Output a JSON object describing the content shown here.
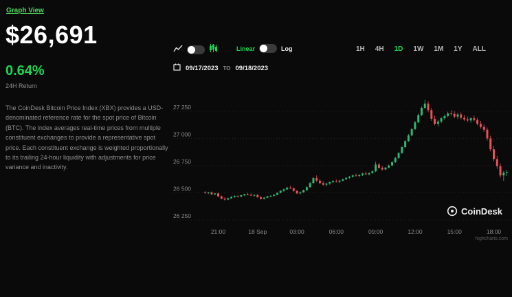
{
  "header": {
    "graph_view_label": "Graph View"
  },
  "price_panel": {
    "price": "$26,691",
    "change_percent": "0.64%",
    "change_label": "24H Return",
    "description": "The CoinDesk Bitcoin Price Index (XBX) provides a USD-denominated reference rate for the spot price of Bitcoin (BTC). The index averages real-time prices from multiple constituent exchanges to provide a representative spot price. Each constituent exchange is weighted proportionally to its trailing 24-hour liquidity with adjustments for price variance and inactivity."
  },
  "controls": {
    "chart_type_toggle": {
      "left_icon": "line-chart-icon",
      "right_icon": "candlestick-icon"
    },
    "scale_toggle": {
      "linear_label": "Linear",
      "log_label": "Log"
    },
    "ranges": [
      "1H",
      "4H",
      "1D",
      "1W",
      "1M",
      "1Y",
      "ALL"
    ],
    "active_range": "1D",
    "date_from": "09/17/2023",
    "date_to_label": "TO",
    "date_to": "09/18/2023"
  },
  "branding": {
    "logo_text": "CoinDesk",
    "credit": "highcharts.com"
  },
  "colors": {
    "accent_green": "#16d954",
    "link_green": "#4fdb60",
    "up": "#2eb872",
    "down": "#ee5058"
  },
  "chart_data": {
    "type": "candlestick",
    "title": "CoinDesk Bitcoin Price Index (XBX) 1D candles, 09/17/2023 to 09/18/2023",
    "xlabel": "",
    "ylabel": "",
    "ylim": [
      26200,
      27400
    ],
    "grid": true,
    "up_color": "#2eb872",
    "down_color": "#ee5058",
    "y_ticks": [
      {
        "value": 27250,
        "label": "27 250"
      },
      {
        "value": 27000,
        "label": "27 000"
      },
      {
        "value": 26750,
        "label": "26 750"
      },
      {
        "value": 26500,
        "label": "26 500"
      },
      {
        "value": 26250,
        "label": "26 250"
      }
    ],
    "x_ticks": [
      {
        "index": 4,
        "label": "21:00"
      },
      {
        "index": 16,
        "label": "18 Sep"
      },
      {
        "index": 28,
        "label": "03:00"
      },
      {
        "index": 40,
        "label": "06:00"
      },
      {
        "index": 52,
        "label": "09:00"
      },
      {
        "index": 64,
        "label": "12:00"
      },
      {
        "index": 76,
        "label": "15:00"
      },
      {
        "index": 88,
        "label": "18:00"
      }
    ],
    "candles": [
      [
        26505,
        26515,
        26490,
        26498
      ],
      [
        26498,
        26510,
        26488,
        26505
      ],
      [
        26505,
        26512,
        26480,
        26486
      ],
      [
        26486,
        26500,
        26478,
        26495
      ],
      [
        26495,
        26502,
        26460,
        26468
      ],
      [
        26468,
        26475,
        26440,
        26447
      ],
      [
        26447,
        26460,
        26430,
        26438
      ],
      [
        26438,
        26455,
        26432,
        26450
      ],
      [
        26450,
        26470,
        26445,
        26462
      ],
      [
        26462,
        26478,
        26455,
        26470
      ],
      [
        26470,
        26480,
        26458,
        26465
      ],
      [
        26465,
        26482,
        26460,
        26478
      ],
      [
        26478,
        26492,
        26470,
        26488
      ],
      [
        26488,
        26500,
        26478,
        26482
      ],
      [
        26482,
        26495,
        26470,
        26475
      ],
      [
        26475,
        26488,
        26465,
        26480
      ],
      [
        26480,
        26490,
        26455,
        26460
      ],
      [
        26460,
        26470,
        26438,
        26445
      ],
      [
        26445,
        26462,
        26440,
        26455
      ],
      [
        26455,
        26472,
        26450,
        26468
      ],
      [
        26468,
        26480,
        26460,
        26472
      ],
      [
        26472,
        26488,
        26465,
        26482
      ],
      [
        26482,
        26505,
        26478,
        26500
      ],
      [
        26500,
        26525,
        26495,
        26518
      ],
      [
        26518,
        26540,
        26510,
        26532
      ],
      [
        26532,
        26555,
        26525,
        26548
      ],
      [
        26548,
        26565,
        26535,
        26542
      ],
      [
        26542,
        26550,
        26510,
        26518
      ],
      [
        26518,
        26528,
        26488,
        26495
      ],
      [
        26495,
        26512,
        26485,
        26505
      ],
      [
        26505,
        26530,
        26500,
        26525
      ],
      [
        26525,
        26560,
        26520,
        26552
      ],
      [
        26552,
        26600,
        26545,
        26590
      ],
      [
        26590,
        26648,
        26585,
        26635
      ],
      [
        26635,
        26660,
        26600,
        26612
      ],
      [
        26612,
        26625,
        26580,
        26590
      ],
      [
        26590,
        26610,
        26565,
        26575
      ],
      [
        26575,
        26595,
        26560,
        26585
      ],
      [
        26585,
        26605,
        26575,
        26598
      ],
      [
        26598,
        26615,
        26588,
        26608
      ],
      [
        26608,
        26622,
        26595,
        26602
      ],
      [
        26602,
        26618,
        26590,
        26612
      ],
      [
        26612,
        26630,
        26605,
        26625
      ],
      [
        26625,
        26645,
        26618,
        26638
      ],
      [
        26638,
        26655,
        26628,
        26648
      ],
      [
        26648,
        26668,
        26640,
        26660
      ],
      [
        26660,
        26678,
        26650,
        26655
      ],
      [
        26655,
        26670,
        26642,
        26665
      ],
      [
        26665,
        26685,
        26655,
        26678
      ],
      [
        26678,
        26695,
        26665,
        26670
      ],
      [
        26670,
        26688,
        26660,
        26682
      ],
      [
        26682,
        26705,
        26675,
        26698
      ],
      [
        26698,
        26785,
        26690,
        26760
      ],
      [
        26760,
        26775,
        26720,
        26730
      ],
      [
        26730,
        26748,
        26705,
        26715
      ],
      [
        26715,
        26738,
        26708,
        26732
      ],
      [
        26732,
        26760,
        26725,
        26752
      ],
      [
        26752,
        26790,
        26745,
        26782
      ],
      [
        26782,
        26830,
        26775,
        26820
      ],
      [
        26820,
        26875,
        26812,
        26865
      ],
      [
        26865,
        26930,
        26858,
        26920
      ],
      [
        26920,
        26985,
        26912,
        26975
      ],
      [
        26975,
        27040,
        26968,
        27028
      ],
      [
        27028,
        27095,
        27020,
        27085
      ],
      [
        27085,
        27160,
        27078,
        27148
      ],
      [
        27148,
        27230,
        27140,
        27215
      ],
      [
        27215,
        27295,
        27205,
        27280
      ],
      [
        27280,
        27355,
        27270,
        27320
      ],
      [
        27320,
        27340,
        27240,
        27260
      ],
      [
        27260,
        27280,
        27160,
        27180
      ],
      [
        27180,
        27210,
        27120,
        27135
      ],
      [
        27135,
        27170,
        27110,
        27155
      ],
      [
        27155,
        27195,
        27140,
        27185
      ],
      [
        27185,
        27220,
        27170,
        27205
      ],
      [
        27205,
        27245,
        27195,
        27230
      ],
      [
        27230,
        27260,
        27210,
        27225
      ],
      [
        27225,
        27250,
        27185,
        27200
      ],
      [
        27200,
        27235,
        27180,
        27220
      ],
      [
        27220,
        27240,
        27175,
        27190
      ],
      [
        27190,
        27215,
        27160,
        27175
      ],
      [
        27175,
        27200,
        27150,
        27165
      ],
      [
        27165,
        27195,
        27145,
        27185
      ],
      [
        27185,
        27210,
        27155,
        27170
      ],
      [
        27170,
        27190,
        27120,
        27135
      ],
      [
        27135,
        27160,
        27090,
        27105
      ],
      [
        27105,
        27130,
        27060,
        27080
      ],
      [
        27080,
        27100,
        26980,
        27000
      ],
      [
        27000,
        27025,
        26880,
        26900
      ],
      [
        26900,
        26930,
        26790,
        26810
      ],
      [
        26810,
        26840,
        26720,
        26745
      ],
      [
        26745,
        26770,
        26640,
        26660
      ],
      [
        26660,
        26700,
        26610,
        26685
      ],
      [
        26685,
        26710,
        26655,
        26691
      ]
    ]
  }
}
